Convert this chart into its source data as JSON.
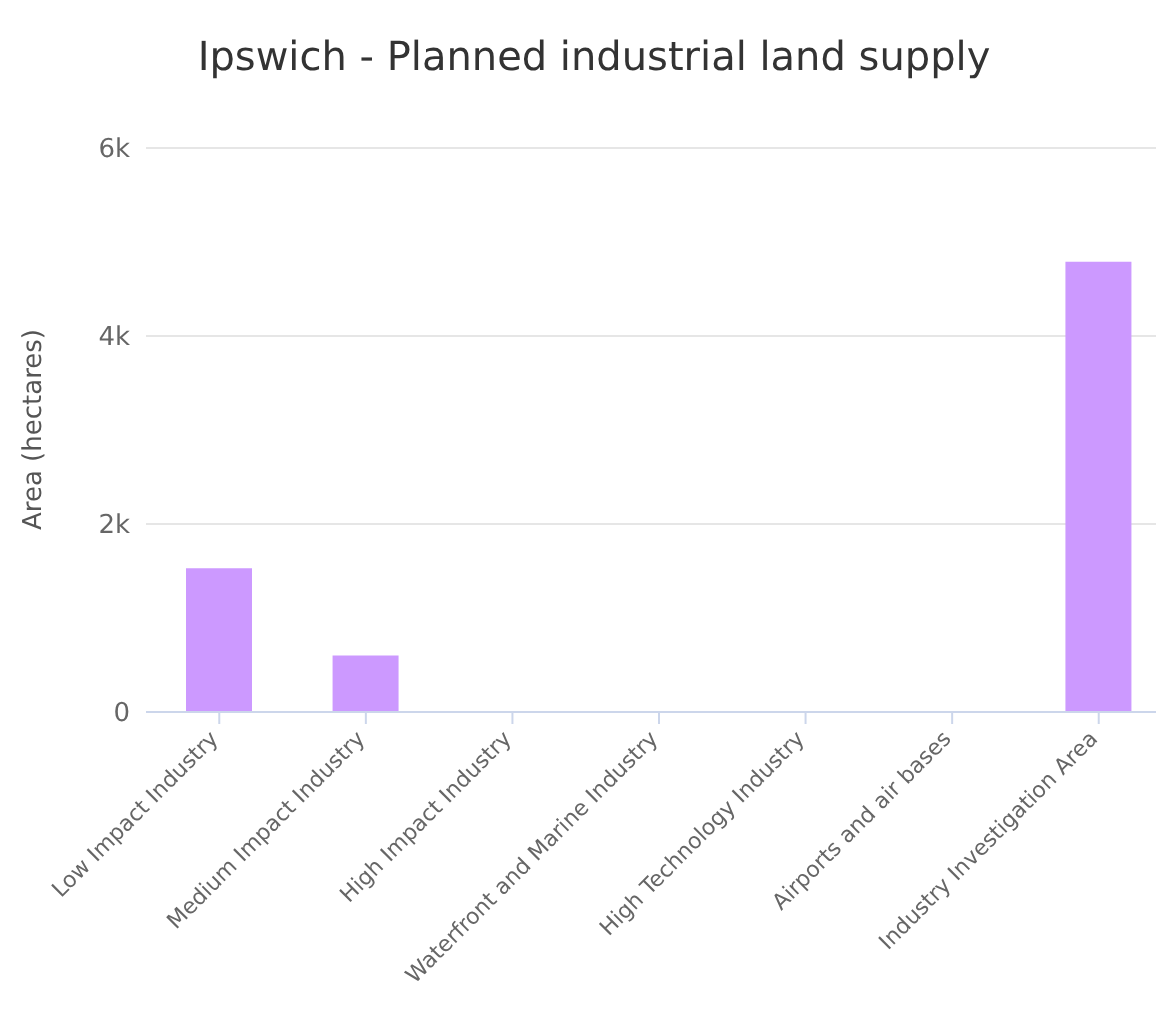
{
  "chart_data": {
    "type": "bar",
    "title": "Ipswich - Planned industrial land supply",
    "ylabel": "Area (hectares)",
    "categories": [
      "Low Impact Industry",
      "Medium Impact Industry",
      "High Impact Industry",
      "Waterfront and Marine Industry",
      "High Technology Industry",
      "Airports and air bases",
      "Industry Investigation Area"
    ],
    "values": [
      1530,
      600,
      0,
      0,
      0,
      0,
      4790
    ],
    "color": "#cc99ff",
    "ylim": [
      0,
      6000
    ],
    "yticks": [
      {
        "value": 0,
        "label": "0"
      },
      {
        "value": 2000,
        "label": "2k"
      },
      {
        "value": 4000,
        "label": "4k"
      },
      {
        "value": 6000,
        "label": "6k"
      }
    ],
    "grid": "y"
  }
}
